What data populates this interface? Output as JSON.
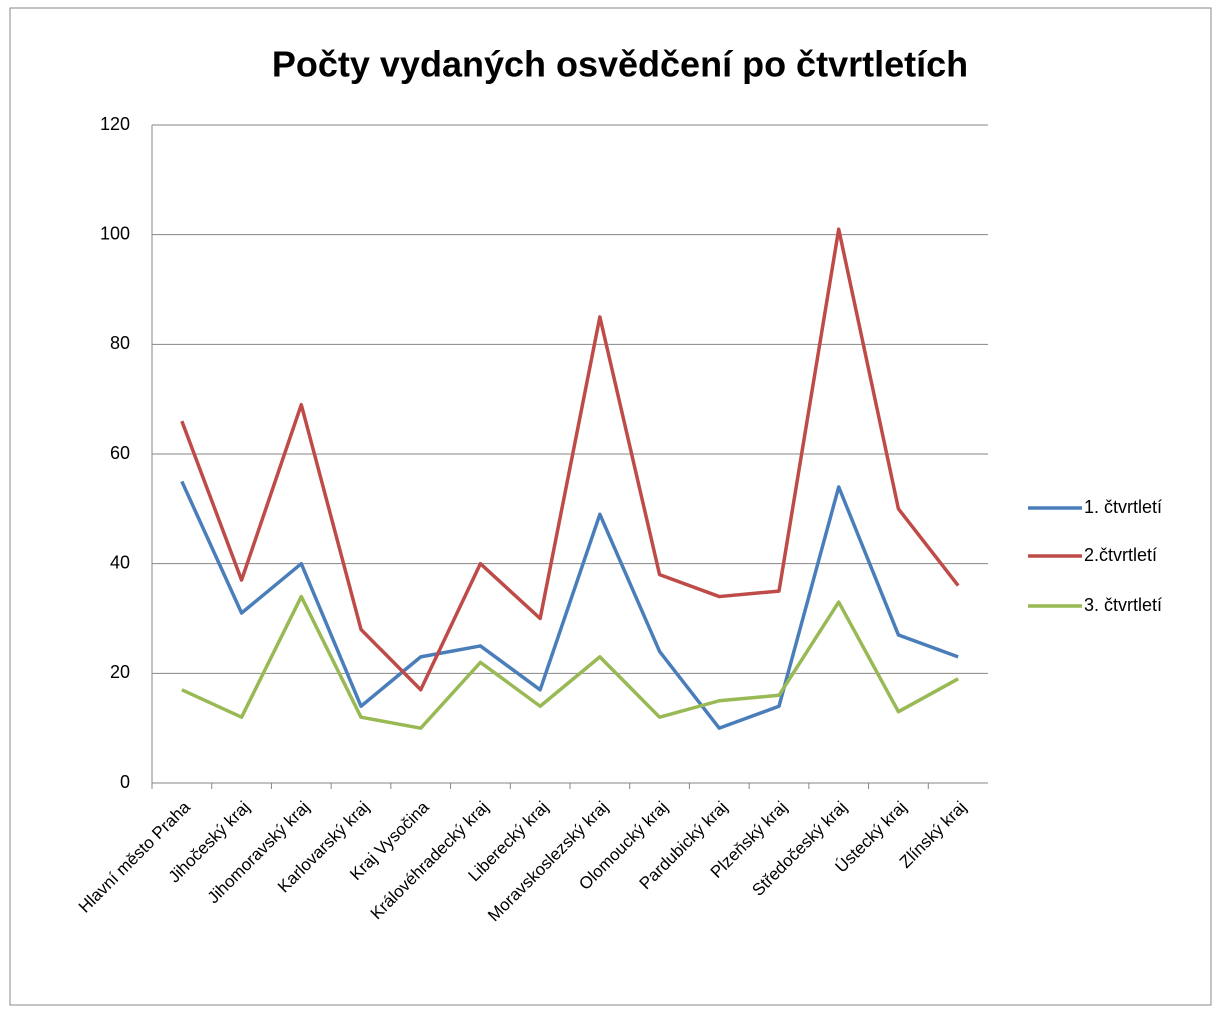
{
  "chart_data": {
    "type": "line",
    "title": "Počty vydaných osvědčení po čtvrtletích",
    "categories": [
      "Hlavní město Praha",
      "Jihočeský kraj",
      "Jihomoravský kraj",
      "Karlovarský kraj",
      "Kraj Vysočina",
      "Královéhradecký kraj",
      "Liberecký kraj",
      "Moravskoslezský kraj",
      "Olomoucký kraj",
      "Pardubický kraj",
      "Plzeňský kraj",
      "Středočeský kraj",
      "Ústecký kraj",
      "Zlínský kraj"
    ],
    "series": [
      {
        "name": "1. čtvrtletí",
        "color": "#4a7ebb",
        "values": [
          55,
          31,
          40,
          14,
          23,
          25,
          17,
          49,
          24,
          10,
          14,
          54,
          27,
          23
        ]
      },
      {
        "name": "2.čtvrtletí",
        "color": "#be4b48",
        "values": [
          66,
          37,
          69,
          28,
          17,
          40,
          30,
          85,
          38,
          34,
          35,
          101,
          50,
          36
        ]
      },
      {
        "name": "3. čtvrtletí",
        "color": "#98b954",
        "values": [
          17,
          12,
          34,
          12,
          10,
          22,
          14,
          23,
          12,
          15,
          16,
          33,
          13,
          19
        ]
      }
    ],
    "ylim": [
      0,
      120
    ],
    "yticks": [
      0,
      20,
      40,
      60,
      80,
      100,
      120
    ],
    "grid": true,
    "legend": "right"
  }
}
